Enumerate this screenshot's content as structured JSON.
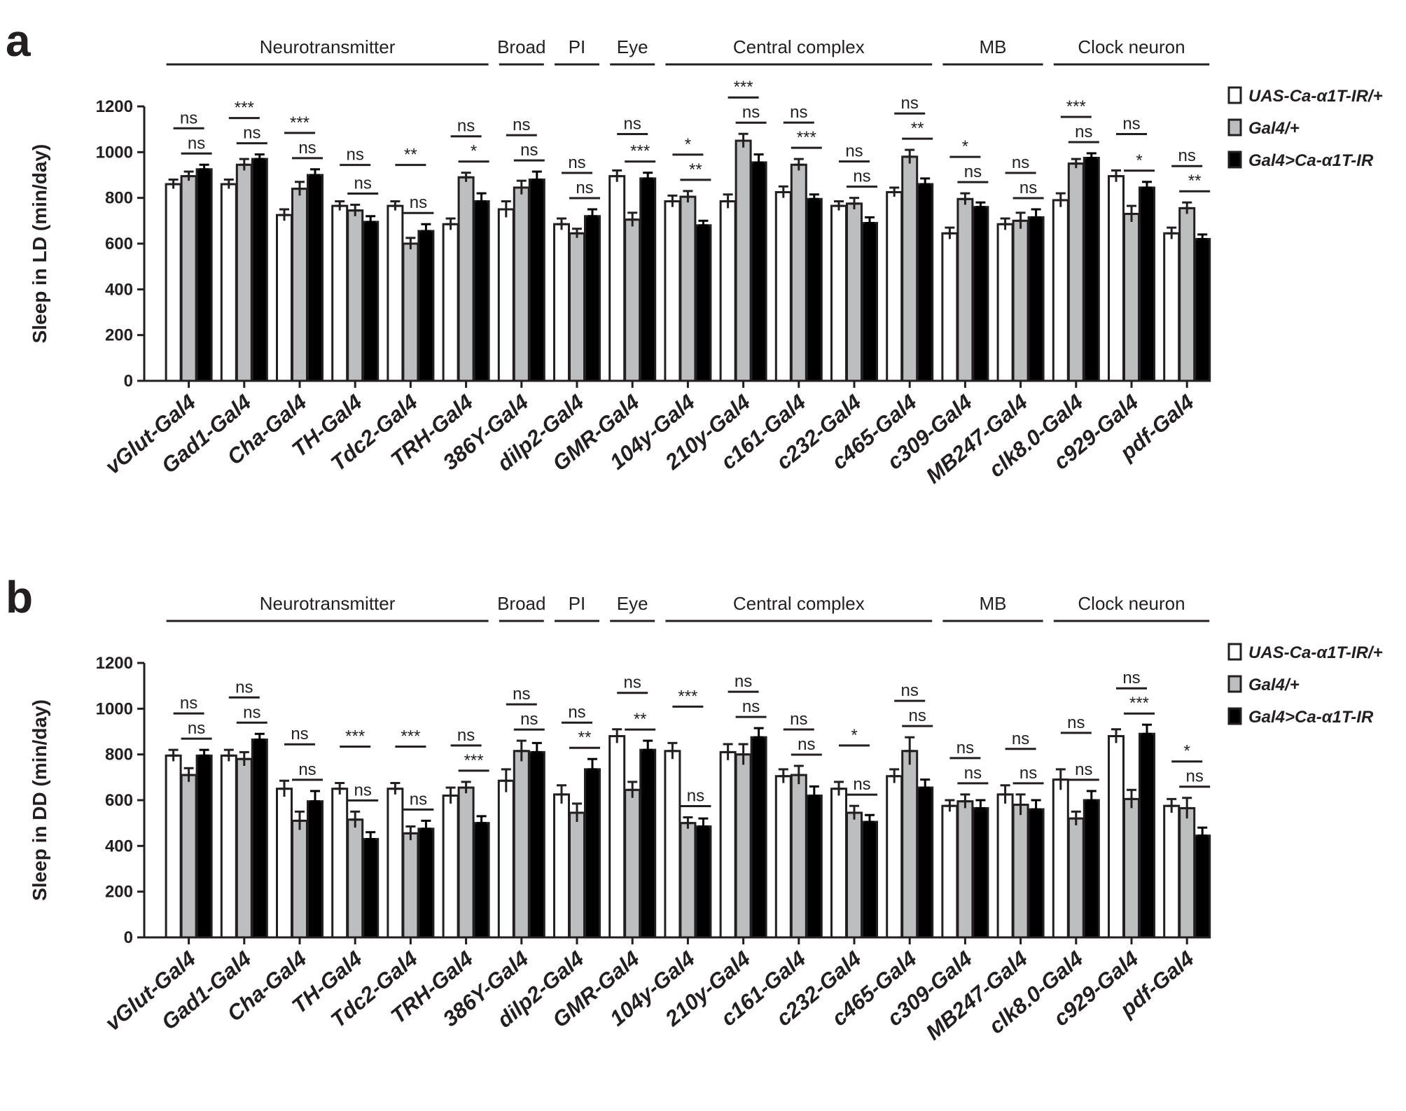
{
  "chart_data": [
    {
      "panel": "a",
      "type": "bar",
      "ylabel": "Sleep in LD (min/day)",
      "ylim": [
        0,
        1200
      ],
      "yticks": [
        0,
        200,
        400,
        600,
        800,
        1000,
        1200
      ],
      "categories": [
        "vGlut-Gal4",
        "Gad1-Gal4",
        "Cha-Gal4",
        "TH-Gal4",
        "Tdc2-Gal4",
        "TRH-Gal4",
        "386Y-Gal4",
        "dilp2-Gal4",
        "GMR-Gal4",
        "104y-Gal4",
        "210y-Gal4",
        "c161-Gal4",
        "c232-Gal4",
        "c465-Gal4",
        "c309-Gal4",
        "MB247-Gal4",
        "clk8.0-Gal4",
        "c929-Gal4",
        "pdf-Gal4"
      ],
      "groups": [
        {
          "label": "Neurotransmitter",
          "from": 0,
          "to": 5
        },
        {
          "label": "Broad",
          "from": 6,
          "to": 6
        },
        {
          "label": "PI",
          "from": 7,
          "to": 7
        },
        {
          "label": "Eye",
          "from": 8,
          "to": 8
        },
        {
          "label": "Central complex",
          "from": 9,
          "to": 13
        },
        {
          "label": "MB",
          "from": 14,
          "to": 15
        },
        {
          "label": "Clock neuron",
          "from": 16,
          "to": 18
        }
      ],
      "series": [
        {
          "name": "UAS-Ca-α1T-IR/+",
          "color": "#ffffff",
          "values": [
            860,
            860,
            725,
            765,
            765,
            685,
            750,
            685,
            895,
            785,
            785,
            825,
            765,
            825,
            645,
            685,
            790,
            895,
            645
          ],
          "errors": [
            20,
            20,
            25,
            20,
            20,
            25,
            35,
            25,
            25,
            25,
            30,
            25,
            20,
            20,
            25,
            25,
            30,
            25,
            25
          ]
        },
        {
          "name": "Gal4/+",
          "color": "#bcbec0",
          "values": [
            895,
            945,
            840,
            745,
            600,
            890,
            845,
            645,
            705,
            805,
            1050,
            945,
            775,
            980,
            795,
            700,
            950,
            730,
            755
          ],
          "errors": [
            20,
            25,
            30,
            25,
            25,
            20,
            30,
            20,
            30,
            25,
            30,
            25,
            25,
            30,
            25,
            35,
            20,
            35,
            25
          ]
        },
        {
          "name": "Gal4>Ca-α1T-IR",
          "color": "#000000",
          "values": [
            925,
            970,
            900,
            695,
            655,
            785,
            880,
            720,
            885,
            680,
            955,
            795,
            690,
            860,
            760,
            715,
            975,
            845,
            620
          ],
          "errors": [
            20,
            20,
            25,
            25,
            30,
            35,
            35,
            30,
            25,
            20,
            35,
            20,
            25,
            25,
            20,
            35,
            20,
            25,
            20
          ]
        }
      ],
      "significance": {
        "outer": [
          "ns",
          "***",
          "***",
          "ns",
          "**",
          "ns",
          "ns",
          "ns",
          "ns",
          "*",
          "***",
          "ns",
          "ns",
          "ns",
          "*",
          "ns",
          "***",
          "ns",
          "ns"
        ],
        "inner": [
          "ns",
          "ns",
          "ns",
          "ns",
          "ns",
          "*",
          "ns",
          "ns",
          "***",
          "**",
          "ns",
          "***",
          "ns",
          "**",
          "ns",
          "ns",
          "ns",
          "*",
          "**"
        ]
      }
    },
    {
      "panel": "b",
      "type": "bar",
      "ylabel": "Sleep in DD (min/day)",
      "ylim": [
        0,
        1200
      ],
      "yticks": [
        0,
        200,
        400,
        600,
        800,
        1000,
        1200
      ],
      "categories": [
        "vGlut-Gal4",
        "Gad1-Gal4",
        "Cha-Gal4",
        "TH-Gal4",
        "Tdc2-Gal4",
        "TRH-Gal4",
        "386Y-Gal4",
        "dilp2-Gal4",
        "GMR-Gal4",
        "104y-Gal4",
        "210y-Gal4",
        "c161-Gal4",
        "c232-Gal4",
        "c465-Gal4",
        "c309-Gal4",
        "MB247-Gal4",
        "clk8.0-Gal4",
        "c929-Gal4",
        "pdf-Gal4"
      ],
      "groups": [
        {
          "label": "Neurotransmitter",
          "from": 0,
          "to": 5
        },
        {
          "label": "Broad",
          "from": 6,
          "to": 6
        },
        {
          "label": "PI",
          "from": 7,
          "to": 7
        },
        {
          "label": "Eye",
          "from": 8,
          "to": 8
        },
        {
          "label": "Central complex",
          "from": 9,
          "to": 13
        },
        {
          "label": "MB",
          "from": 14,
          "to": 15
        },
        {
          "label": "Clock neuron",
          "from": 16,
          "to": 18
        }
      ],
      "series": [
        {
          "name": "UAS-Ca-α1T-IR/+",
          "color": "#ffffff",
          "values": [
            795,
            795,
            650,
            650,
            650,
            620,
            685,
            625,
            880,
            815,
            810,
            705,
            650,
            705,
            575,
            625,
            690,
            880,
            575
          ],
          "errors": [
            25,
            25,
            35,
            25,
            25,
            35,
            50,
            40,
            30,
            35,
            35,
            30,
            30,
            30,
            25,
            40,
            45,
            30,
            30
          ]
        },
        {
          "name": "Gal4/+",
          "color": "#bcbec0",
          "values": [
            710,
            780,
            510,
            515,
            455,
            655,
            815,
            545,
            645,
            500,
            800,
            710,
            545,
            815,
            595,
            580,
            520,
            605,
            565
          ],
          "errors": [
            30,
            30,
            40,
            35,
            30,
            25,
            45,
            40,
            35,
            25,
            45,
            40,
            30,
            60,
            30,
            45,
            30,
            40,
            45
          ]
        },
        {
          "name": "Gal4>Ca-α1T-IR",
          "color": "#000000",
          "values": [
            795,
            865,
            595,
            430,
            475,
            500,
            810,
            735,
            820,
            485,
            875,
            620,
            505,
            655,
            565,
            560,
            600,
            890,
            445
          ],
          "errors": [
            25,
            25,
            45,
            30,
            35,
            30,
            40,
            45,
            40,
            35,
            40,
            40,
            30,
            35,
            35,
            40,
            40,
            40,
            35
          ]
        }
      ],
      "significance": {
        "outer": [
          "ns",
          "ns",
          "ns",
          "***",
          "***",
          "ns",
          "ns",
          "ns",
          "ns",
          "***",
          "ns",
          "ns",
          "*",
          "ns",
          "ns",
          "ns",
          "ns",
          "ns",
          "*"
        ],
        "inner": [
          "ns",
          "ns",
          "ns",
          "ns",
          "ns",
          "***",
          "ns",
          "**",
          "**",
          "ns",
          "ns",
          "ns",
          "ns",
          "ns",
          "ns",
          "ns",
          "ns",
          "***",
          "ns"
        ]
      }
    }
  ]
}
